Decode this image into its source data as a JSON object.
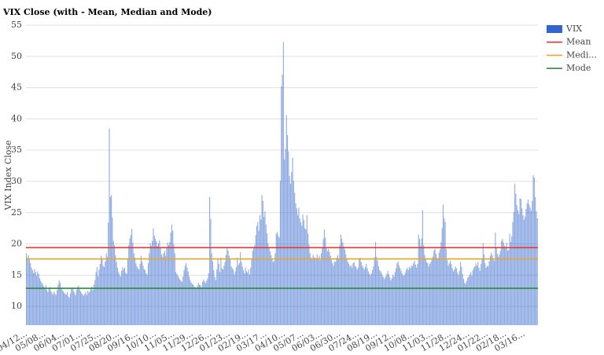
{
  "chart_data": {
    "type": "bar",
    "title": "VIX Close (with - Mean, Median and Mode)",
    "y_label": "VIX Index Close",
    "ylim": [
      7,
      55
    ],
    "yticks": [
      10,
      15,
      20,
      25,
      30,
      35,
      40,
      45,
      50,
      55
    ],
    "grid": true,
    "legend": "right",
    "categories": [
      "04/12...",
      null,
      null,
      null,
      null,
      null,
      null,
      null,
      null,
      null,
      null,
      null,
      null,
      null,
      null,
      null,
      null,
      null,
      "05/08...",
      null,
      null,
      null,
      null,
      null,
      null,
      null,
      null,
      null,
      null,
      null,
      null,
      null,
      null,
      null,
      null,
      null,
      "06/04...",
      null,
      null,
      null,
      null,
      null,
      null,
      null,
      null,
      null,
      null,
      null,
      null,
      null,
      null,
      null,
      null,
      null,
      "07/01...",
      null,
      null,
      null,
      null,
      null,
      null,
      null,
      null,
      null,
      null,
      null,
      null,
      null,
      null,
      null,
      null,
      null,
      "07/25...",
      null,
      null,
      null,
      null,
      null,
      null,
      null,
      null,
      null,
      null,
      null,
      null,
      null,
      null,
      null,
      null,
      null,
      "08/20...",
      null,
      null,
      null,
      null,
      null,
      null,
      null,
      null,
      null,
      null,
      null,
      null,
      null,
      null,
      null,
      null,
      null,
      "09/16...",
      null,
      null,
      null,
      null,
      null,
      null,
      null,
      null,
      null,
      null,
      null,
      null,
      null,
      null,
      null,
      null,
      null,
      "10/10...",
      null,
      null,
      null,
      null,
      null,
      null,
      null,
      null,
      null,
      null,
      null,
      null,
      null,
      null,
      null,
      null,
      null,
      "11/05...",
      null,
      null,
      null,
      null,
      null,
      null,
      null,
      null,
      null,
      null,
      null,
      null,
      null,
      null,
      null,
      null,
      null,
      "11/29...",
      null,
      null,
      null,
      null,
      null,
      null,
      null,
      null,
      null,
      null,
      null,
      null,
      null,
      null,
      null,
      null,
      null,
      "12/26...",
      null,
      null,
      null,
      null,
      null,
      null,
      null,
      null,
      null,
      null,
      null,
      null,
      null,
      null,
      null,
      null,
      null,
      "01/23...",
      null,
      null,
      null,
      null,
      null,
      null,
      null,
      null,
      null,
      null,
      null,
      null,
      null,
      null,
      null,
      null,
      null,
      "02/19...",
      null,
      null,
      null,
      null,
      null,
      null,
      null,
      null,
      null,
      null,
      null,
      null,
      null,
      null,
      null,
      null,
      null,
      "03/17...",
      null,
      null,
      null,
      null,
      null,
      null,
      null,
      null,
      null,
      null,
      null,
      null,
      null,
      null,
      null,
      null,
      null,
      "04/10...",
      null,
      null,
      null,
      null,
      null,
      null,
      null,
      null,
      null,
      null,
      null,
      null,
      null,
      null,
      null,
      null,
      null,
      "05/07...",
      null,
      null,
      null,
      null,
      null,
      null,
      null,
      null,
      null,
      null,
      null,
      null,
      null,
      null,
      null,
      null,
      null,
      "06/03...",
      null,
      null,
      null,
      null,
      null,
      null,
      null,
      null,
      null,
      null,
      null,
      null,
      null,
      null,
      null,
      null,
      null,
      "06/30...",
      null,
      null,
      null,
      null,
      null,
      null,
      null,
      null,
      null,
      null,
      null,
      null,
      null,
      null,
      null,
      null,
      null,
      "07/24...",
      null,
      null,
      null,
      null,
      null,
      null,
      null,
      null,
      null,
      null,
      null,
      null,
      null,
      null,
      null,
      null,
      null,
      "08/19...",
      null,
      null,
      null,
      null,
      null,
      null,
      null,
      null,
      null,
      null,
      null,
      null,
      null,
      null,
      null,
      null,
      null,
      "09/12...",
      null,
      null,
      null,
      null,
      null,
      null,
      null,
      null,
      null,
      null,
      null,
      null,
      null,
      null,
      null,
      null,
      null,
      "10/08...",
      null,
      null,
      null,
      null,
      null,
      null,
      null,
      null,
      null,
      null,
      null,
      null,
      null,
      null,
      null,
      null,
      null,
      "11/03...",
      null,
      null,
      null,
      null,
      null,
      null,
      null,
      null,
      null,
      null,
      null,
      null,
      null,
      null,
      null,
      null,
      null,
      "11/28...",
      null,
      null,
      null,
      null,
      null,
      null,
      null,
      null,
      null,
      null,
      null,
      null,
      null,
      null,
      null,
      null,
      null,
      "12/24...",
      null,
      null,
      null,
      null,
      null,
      null,
      null,
      null,
      null,
      null,
      null,
      null,
      null,
      null,
      null,
      null,
      null,
      "01/22...",
      null,
      null,
      null,
      null,
      null,
      null,
      null,
      null,
      null,
      null,
      null,
      null,
      null,
      null,
      null,
      null,
      null,
      "02/18...",
      null,
      null,
      null,
      null,
      null,
      null,
      null,
      null,
      null,
      null,
      null,
      null,
      null,
      null,
      null,
      null,
      null,
      "03/16...",
      null,
      null,
      null,
      null,
      null,
      null,
      null,
      null,
      null,
      null,
      null,
      null,
      null
    ],
    "series": [
      {
        "name": "VIX",
        "color": "#3366cc",
        "values": [
          18.5,
          17.8,
          18.2,
          17.5,
          16.9,
          16.2,
          15.8,
          15.3,
          16,
          15.5,
          14.9,
          15.6,
          15.2,
          14.5,
          14.1,
          13.8,
          13.5,
          13.2,
          12.8,
          13.4,
          12.6,
          12.3,
          12.9,
          13.1,
          12.5,
          12.2,
          11.9,
          12.4,
          12.1,
          11.8,
          12.6,
          13.5,
          14.2,
          13.8,
          12.9,
          12.7,
          12.4,
          12.2,
          12,
          11.9,
          12.3,
          11.6,
          11.4,
          12.1,
          12.8,
          13,
          12.5,
          12.2,
          11.8,
          12.6,
          13.1,
          13.3,
          12.7,
          12.4,
          12.1,
          11.9,
          11.7,
          12,
          12.3,
          11.8,
          12.5,
          12.2,
          12.4,
          12.9,
          13.2,
          12.6,
          13.5,
          14.2,
          15.5,
          16.3,
          14.8,
          15.9,
          16.8,
          18.1,
          17.5,
          16.5,
          16.3,
          17.2,
          18.5,
          17.9,
          23.4,
          38.5,
          27.5,
          27.8,
          24.2,
          20.5,
          19.8,
          18.2,
          17.1,
          16.2,
          15.5,
          15.1,
          14.8,
          15.7,
          16.3,
          15.9,
          16.2,
          15.4,
          15.2,
          17.5,
          19.8,
          20.9,
          21.4,
          22.4,
          20.2,
          18.5,
          17.8,
          16.9,
          16.4,
          16.1,
          15.9,
          16.8,
          18.1,
          17.2,
          16.5,
          16,
          15.8,
          15.3,
          15.1,
          16.9,
          18.5,
          20.1,
          19.7,
          20.5,
          22.5,
          21.3,
          20.8,
          20.4,
          19.7,
          20.1,
          20.6,
          19.4,
          18.3,
          17.9,
          18.5,
          18.9,
          18.1,
          19.5,
          20.2,
          19.8,
          20.3,
          21.8,
          23.1,
          22.1,
          19.9,
          18.5,
          15.5,
          15.2,
          14.9,
          14.6,
          14.3,
          14.1,
          13.9,
          14.8,
          15.8,
          16.5,
          16.9,
          16.2,
          15.6,
          14.8,
          14.2,
          13.8,
          13.6,
          13.5,
          13.2,
          13.1,
          12.9,
          13.3,
          13.8,
          13.5,
          13.4,
          13.1,
          13.9,
          14.3,
          14,
          13.7,
          14.1,
          14.5,
          15.3,
          27.5,
          24,
          18.5,
          17.2,
          15.8,
          14.7,
          14.2,
          15.9,
          17.5,
          16.8,
          15.5,
          17.8,
          16.1,
          15.9,
          16.5,
          17.1,
          18.2,
          19.4,
          18.9,
          18.1,
          17.5,
          16.4,
          16.1,
          15.9,
          15.1,
          15.6,
          16.3,
          17.8,
          16.6,
          16.9,
          18.7,
          17.1,
          16.4,
          15.8,
          15.3,
          16.2,
          15.6,
          15.4,
          15.9,
          15.1,
          16.2,
          17.5,
          18.9,
          19.3,
          19.8,
          21.4,
          22.9,
          23.5,
          22.1,
          24.6,
          23.9,
          27.8,
          26.9,
          24.3,
          25.2,
          23.1,
          21.7,
          20.1,
          19.4,
          18.8,
          18.2,
          17.5,
          17.1,
          17.3,
          18.5,
          21.6,
          21.9,
          21.3,
          21,
          30.1,
          45.2,
          47.1,
          52.3,
          33.5,
          35.2,
          40.6,
          37.4,
          34.8,
          30.9,
          29.6,
          31.5,
          33.8,
          30.1,
          28.2,
          26.5,
          25.7,
          24.6,
          25.8,
          24.1,
          23.5,
          22.9,
          24.7,
          23.8,
          22.5,
          22.3,
          24.6,
          21.6,
          19.9,
          18.5,
          17.8,
          17.5,
          18.2,
          17.9,
          17.5,
          17.8,
          18.3,
          17.6,
          18.1,
          17.4,
          18.5,
          19.4,
          20.8,
          22.3,
          21,
          19.5,
          18.8,
          19.2,
          18.7,
          18.1,
          17.4,
          16.9,
          16.5,
          17.2,
          17.1,
          17.8,
          18.2,
          17.6,
          19.8,
          21.5,
          20.8,
          20.2,
          19.6,
          19.1,
          18.3,
          17.5,
          17.1,
          16.8,
          16.4,
          16.6,
          16.2,
          16.9,
          17.1,
          16.5,
          16.3,
          15.9,
          16.2,
          17.5,
          17.8,
          17.1,
          16.5,
          16.2,
          15.9,
          16.3,
          16.8,
          16.1,
          15.6,
          15.2,
          15,
          15.3,
          15.8,
          16.4,
          17.9,
          20.3,
          17.9,
          17.3,
          16.4,
          15.8,
          15.6,
          15.3,
          14.9,
          14.6,
          14.4,
          14.8,
          15.2,
          15.7,
          15.1,
          14.6,
          14.2,
          14.5,
          15.1,
          14.8,
          15.5,
          16.1,
          16.9,
          17.2,
          16.5,
          16.1,
          15.7,
          15.3,
          14.9,
          15,
          15.4,
          15.9,
          16.2,
          15.8,
          16.3,
          16.1,
          16.6,
          16.4,
          16.9,
          17.3,
          16.7,
          16.2,
          16.8,
          21.5,
          20.8,
          19.7,
          20.9,
          25.4,
          19.8,
          18.2,
          17.5,
          17.1,
          16.9,
          16.4,
          16.8,
          17.1,
          17.5,
          18,
          18.9,
          19.2,
          18.4,
          17.8,
          17.5,
          18.6,
          19.1,
          20.3,
          22.5,
          26.3,
          24.1,
          23.5,
          19.2,
          17.4,
          16.5,
          16.9,
          17.3,
          16.8,
          16.1,
          15.6,
          15.9,
          16.4,
          16.1,
          15.4,
          15,
          15.7,
          17.1,
          16.3,
          15.2,
          14.4,
          13.8,
          13.6,
          14.1,
          14.6,
          14.8,
          15.1,
          15.5,
          14.9,
          15.8,
          16.2,
          16.4,
          16.9,
          16.5,
          17.1,
          16.2,
          15.7,
          16.8,
          17.5,
          20.1,
          18.3,
          16.9,
          16.2,
          16.5,
          16.4,
          17.2,
          18.1,
          18.6,
          18.2,
          17.5,
          17.3,
          21.8,
          19.5,
          18.4,
          17.9,
          18.3,
          18.9,
          20.5,
          20.8,
          20.2,
          19.7,
          19.4,
          20.2,
          18.9,
          19.1,
          21.6,
          20.3,
          21.2,
          23.5,
          25.1,
          29.6,
          28,
          26.2,
          25.4,
          24.8,
          27.3,
          27.2,
          25.7,
          24.6,
          23.9,
          24.4,
          25.6,
          26.5,
          27.1,
          26.3,
          25.8,
          25.3,
          26.9,
          31,
          30.6,
          27.5,
          25.2,
          24.1
        ]
      }
    ],
    "reference_lines": [
      {
        "name": "Mean",
        "color": "#e53935",
        "value": 19.4
      },
      {
        "name": "Medi...",
        "color": "#f2a32a",
        "value": 17.6
      },
      {
        "name": "Mode",
        "color": "#2e8b3a",
        "value": 12.9
      }
    ]
  }
}
